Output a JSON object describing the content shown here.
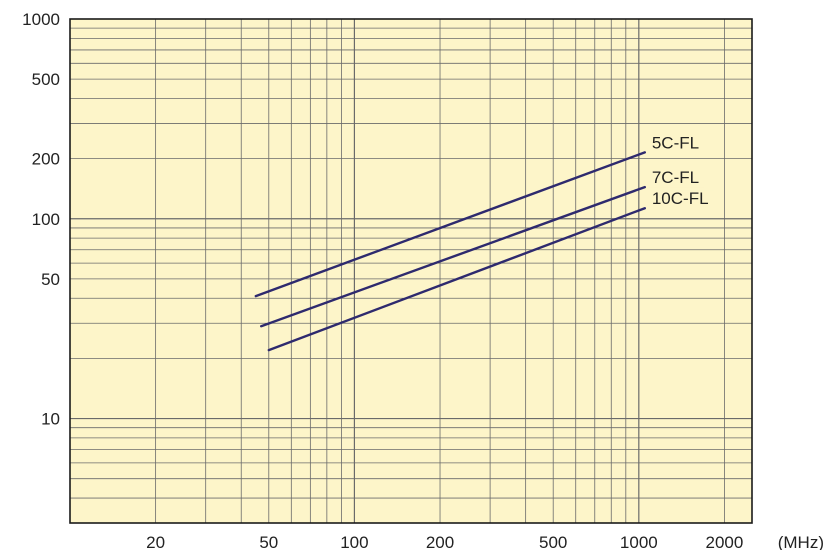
{
  "chart_data": {
    "type": "line",
    "x_scale": "log",
    "y_scale": "log",
    "xlim": [
      10,
      2500
    ],
    "ylim": [
      3,
      1000
    ],
    "x_ticks": [
      {
        "value": 20,
        "label": "20"
      },
      {
        "value": 50,
        "label": "50"
      },
      {
        "value": 100,
        "label": "100"
      },
      {
        "value": 200,
        "label": "200"
      },
      {
        "value": 500,
        "label": "500"
      },
      {
        "value": 1000,
        "label": "1000"
      },
      {
        "value": 2000,
        "label": "2000"
      }
    ],
    "x_unit": "(MHz)",
    "y_ticks": [
      {
        "value": 10,
        "label": "10"
      },
      {
        "value": 50,
        "label": "50"
      },
      {
        "value": 100,
        "label": "100"
      },
      {
        "value": 200,
        "label": "200"
      },
      {
        "value": 500,
        "label": "500"
      },
      {
        "value": 1000,
        "label": "1000"
      }
    ],
    "grid": true,
    "series": [
      {
        "name": "5C-FL",
        "x": [
          45,
          1050
        ],
        "y": [
          41,
          215
        ]
      },
      {
        "name": "7C-FL",
        "x": [
          47,
          1050
        ],
        "y": [
          29,
          144
        ]
      },
      {
        "name": "10C-FL",
        "x": [
          50,
          1050
        ],
        "y": [
          22,
          113
        ]
      }
    ]
  },
  "colors": {
    "background": "#fdf5c9",
    "grid": "#6a6a6a",
    "frame": "#1a1a1a",
    "series": "#2e2a6e"
  }
}
